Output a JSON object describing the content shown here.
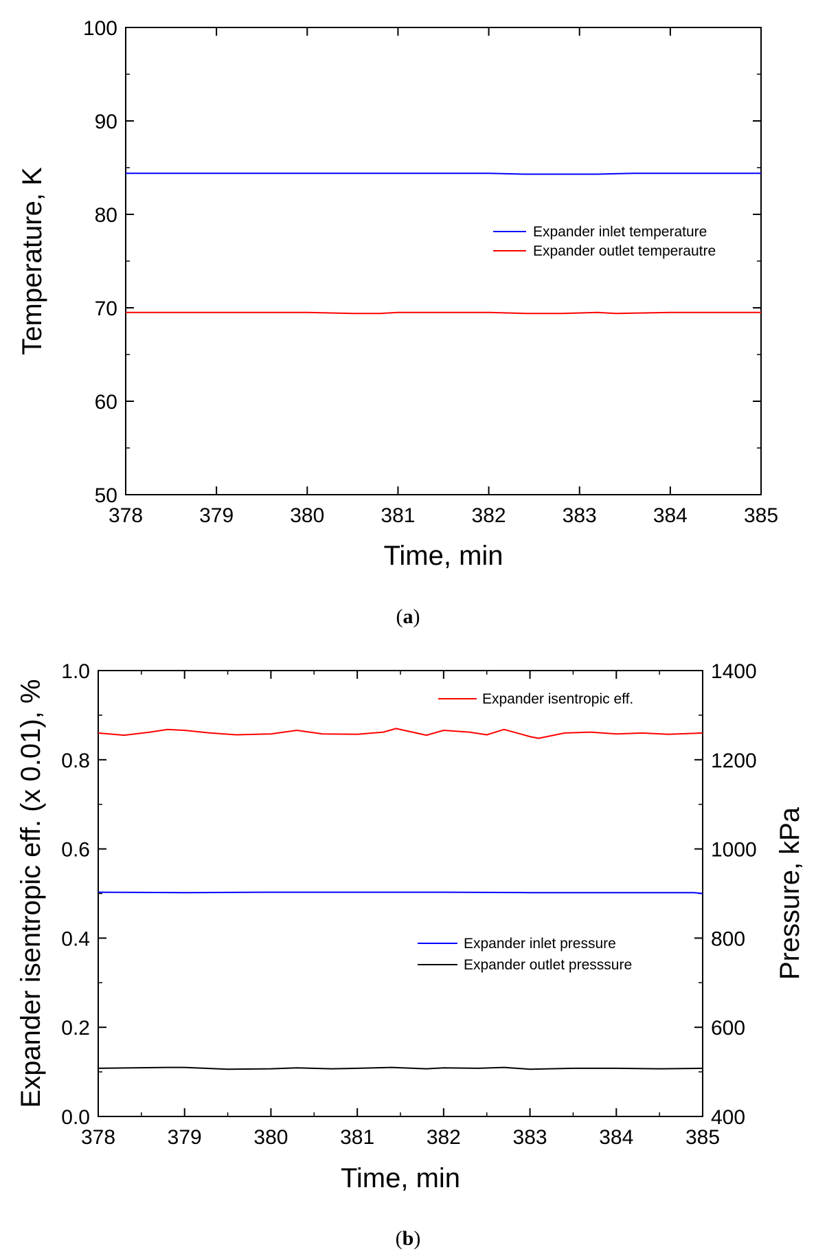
{
  "chart_data": [
    {
      "id": "a",
      "type": "line",
      "caption": {
        "open": "(",
        "letter": "a",
        "close": ")"
      },
      "xlabel": "Time, min",
      "ylabel": "Temperature, K",
      "xlim": [
        378,
        385
      ],
      "ylim": [
        50,
        100
      ],
      "xticks": [
        378,
        379,
        380,
        381,
        382,
        383,
        384,
        385
      ],
      "yticks": [
        50,
        60,
        70,
        80,
        90,
        100
      ],
      "legend_position": "right-middle",
      "series": [
        {
          "name": "Expander inlet temperature",
          "color": "#0000ff",
          "axis": "left",
          "x": [
            378,
            379,
            380,
            381,
            382,
            382.4,
            382.8,
            383.2,
            383.6,
            384,
            385
          ],
          "y": [
            84.4,
            84.4,
            84.4,
            84.4,
            84.4,
            84.3,
            84.3,
            84.3,
            84.4,
            84.4,
            84.4
          ]
        },
        {
          "name": "Expander outlet temperautre",
          "color": "#ff0000",
          "axis": "left",
          "x": [
            378,
            379,
            380,
            380.5,
            380.8,
            381,
            382,
            382.4,
            382.8,
            383.2,
            383.4,
            384,
            385
          ],
          "y": [
            69.5,
            69.5,
            69.5,
            69.4,
            69.4,
            69.5,
            69.5,
            69.4,
            69.4,
            69.5,
            69.4,
            69.5,
            69.5
          ]
        }
      ]
    },
    {
      "id": "b",
      "type": "line",
      "caption": {
        "open": "(",
        "letter": "b",
        "close": ")"
      },
      "xlabel": "Time, min",
      "ylabel": "Expander isentropic eff. (x 0.01), %",
      "y2label": "Pressure, kPa",
      "xlim": [
        378,
        385
      ],
      "ylim": [
        0.0,
        1.0
      ],
      "y2lim": [
        400,
        1400
      ],
      "xticks": [
        378,
        379,
        380,
        381,
        382,
        383,
        384,
        385
      ],
      "yticks": [
        "0.0",
        "0.2",
        "0.4",
        "0.6",
        "0.8",
        "1.0"
      ],
      "y2ticks": [
        400,
        600,
        800,
        1000,
        1200,
        1400
      ],
      "legend_position": "right",
      "series": [
        {
          "name": "Expander isentropic eff.",
          "color": "#ff0000",
          "axis": "left",
          "x": [
            378,
            378.3,
            378.6,
            378.8,
            379,
            379.3,
            379.6,
            380,
            380.3,
            380.6,
            381,
            381.3,
            381.45,
            381.8,
            382,
            382.3,
            382.5,
            382.7,
            383,
            383.1,
            383.4,
            383.7,
            384,
            384.3,
            384.6,
            385
          ],
          "y": [
            0.86,
            0.855,
            0.862,
            0.868,
            0.866,
            0.86,
            0.856,
            0.858,
            0.866,
            0.858,
            0.857,
            0.862,
            0.87,
            0.855,
            0.866,
            0.862,
            0.856,
            0.868,
            0.852,
            0.848,
            0.86,
            0.862,
            0.858,
            0.86,
            0.857,
            0.86
          ]
        },
        {
          "name": "Expander inlet pressure",
          "color": "#0000ff",
          "axis": "right",
          "x": [
            378,
            379,
            380,
            381,
            382,
            383,
            384,
            384.9,
            385
          ],
          "y": [
            903,
            902,
            903,
            903,
            903,
            902,
            902,
            902,
            900
          ]
        },
        {
          "name": "Expander outlet presssure",
          "color": "#000000",
          "axis": "right",
          "x": [
            378,
            378.8,
            379,
            379.5,
            380,
            380.3,
            380.7,
            381,
            381.4,
            381.8,
            382,
            382.4,
            382.7,
            383,
            383.5,
            384,
            384.5,
            385
          ],
          "y": [
            508,
            510,
            510,
            506,
            507,
            509,
            507,
            508,
            510,
            507,
            509,
            508,
            510,
            506,
            508,
            508,
            507,
            508
          ]
        }
      ]
    }
  ]
}
